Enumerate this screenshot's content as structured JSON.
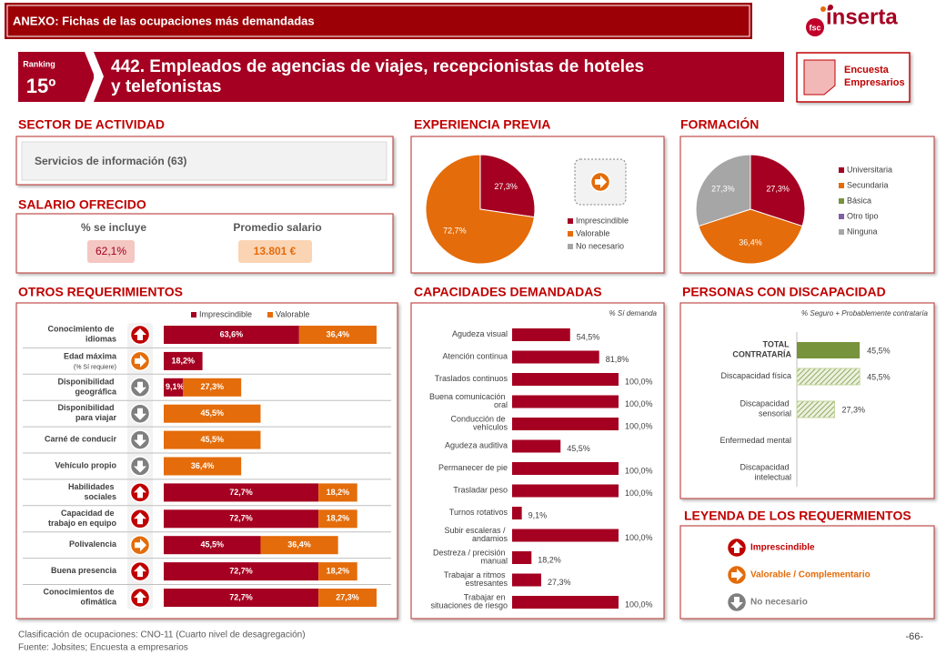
{
  "header": {
    "banner": "ANEXO: Fichas de las ocupaciones más demandadas",
    "logo": "inserta",
    "logo_badge": "fsc",
    "ranking_label": "Ranking",
    "ranking": "15º",
    "title": "442. Empleados de agencias de viajes, recepcionistas de hoteles y telefonistas",
    "source_badge": "Encuesta Empresarios"
  },
  "sector": {
    "heading": "SECTOR DE ACTIVIDAD",
    "value": "Servicios de información (63)"
  },
  "salary": {
    "heading": "SALARIO OFRECIDO",
    "included_label": "% se incluye",
    "included": "62,1%",
    "average_label": "Promedio salario",
    "average": "13.801 €"
  },
  "experience": {
    "type": "pie",
    "heading": "EXPERIENCIA PREVIA",
    "categories": [
      "Imprescindible",
      "Valorable",
      "No necesario"
    ],
    "values": [
      27.3,
      72.7,
      0
    ],
    "value_labels": [
      "27,3%",
      "72,7%",
      null
    ],
    "colors": [
      "#a50021",
      "#e46c0a",
      "#a6a6a6"
    ]
  },
  "training": {
    "type": "pie",
    "heading": "FORMACIÓN",
    "categories": [
      "Universitaria",
      "Secundaria",
      "Básica",
      "Otro tipo",
      "Ninguna"
    ],
    "values": [
      27.3,
      36.4,
      0,
      0,
      27.3
    ],
    "value_labels": [
      "27,3%",
      "36,4%",
      null,
      null,
      "27,3%"
    ],
    "colors": [
      "#a50021",
      "#e46c0a",
      "#77933c",
      "#7f5fa8",
      "#a6a6a6"
    ]
  },
  "requirements": {
    "type": "stacked-bar",
    "heading": "OTROS REQUERIMIENTOS",
    "categories": [
      "Conocimiento de idiomas",
      "Edad máxima",
      "Disponibilidad geográfica",
      "Disponibilidad para viajar",
      "Carné de conducir",
      "Vehículo propio",
      "Habilidades sociales",
      "Capacidad de trabajo en equipo",
      "Polivalencia",
      "Buena presencia",
      "Conocimientos de ofimática"
    ],
    "category_notes": [
      null,
      "(% Sí requiere)",
      null,
      null,
      null,
      null,
      null,
      null,
      null,
      null,
      null
    ],
    "icons": [
      0,
      1,
      2,
      2,
      2,
      2,
      0,
      0,
      1,
      0,
      0
    ],
    "xlim": [
      0,
      100
    ],
    "series": [
      {
        "name": "Imprescindible",
        "color": "#a50021",
        "values": [
          63.6,
          18.2,
          9.1,
          null,
          null,
          null,
          72.7,
          72.7,
          45.5,
          72.7,
          72.7
        ],
        "value_labels": [
          "63,6%",
          "18,2%",
          "9,1%",
          null,
          null,
          null,
          "72,7%",
          "72,7%",
          "45,5%",
          "72,7%",
          "72,7%"
        ]
      },
      {
        "name": "Valorable",
        "color": "#e46c0a",
        "values": [
          36.4,
          null,
          27.3,
          45.5,
          45.5,
          36.4,
          18.2,
          18.2,
          36.4,
          18.2,
          27.3
        ],
        "value_labels": [
          "36,4%",
          null,
          "27,3%",
          "45,5%",
          "45,5%",
          "36,4%",
          "18,2%",
          "18,2%",
          "36,4%",
          "18,2%",
          "27,3%"
        ]
      }
    ]
  },
  "capabilities": {
    "type": "bar",
    "heading": "CAPACIDADES DEMANDADAS",
    "subtitle": "% Sí demanda",
    "color": "#a50021",
    "xlim": [
      0,
      100
    ],
    "categories": [
      "Agudeza visual",
      "Atención continua",
      "Traslados continuos",
      "Buena comunicación oral",
      "Conducción de vehículos",
      "Agudeza auditiva",
      "Permanecer de pie",
      "Trasladar peso",
      "Turnos rotativos",
      "Subir escaleras / andamios",
      "Destreza / precisión manual",
      "Trabajar a ritmos estresantes",
      "Trabajar en situaciones de riesgo"
    ],
    "values": [
      54.5,
      81.8,
      100,
      100,
      100,
      45.5,
      100,
      100,
      9.1,
      100,
      18.2,
      27.3,
      100
    ],
    "value_labels": [
      "54,5%",
      "81,8%",
      "100,0%",
      "100,0%",
      "100,0%",
      "45,5%",
      "100,0%",
      "100,0%",
      "9,1%",
      "100,0%",
      "18,2%",
      "27,3%",
      "100,0%"
    ]
  },
  "disability": {
    "type": "bar",
    "heading": "PERSONAS CON DISCAPACIDAD",
    "subtitle": "% Seguro + Probablemente contrataría",
    "xlim": [
      0,
      100
    ],
    "colors": [
      "#77933c",
      "#c3d69b"
    ],
    "categories": [
      "TOTAL CONTRATARÍA",
      "Discapacidad física",
      "Discapacidad sensorial",
      "Enfermedad mental",
      "Discapacidad intelectual"
    ],
    "values": [
      45.5,
      45.5,
      27.3,
      null,
      null
    ],
    "value_labels": [
      "45,5%",
      "45,5%",
      "27,3%",
      null,
      null
    ]
  },
  "legend": {
    "heading": "LEYENDA DE LOS REQUERMIENTOS",
    "items": [
      {
        "label": "Imprescindible",
        "color": "#c00000"
      },
      {
        "label": "Valorable / Complementario",
        "color": "#e46c0a"
      },
      {
        "label": "No necesario",
        "color": "#7f7f7f"
      }
    ]
  },
  "footer": {
    "note": "Clasificación de ocupaciones: CNO-11 (Cuarto nivel de desagregación)",
    "source": "Fuente: Jobsites; Encuesta a empresarios",
    "page": "-66-"
  }
}
